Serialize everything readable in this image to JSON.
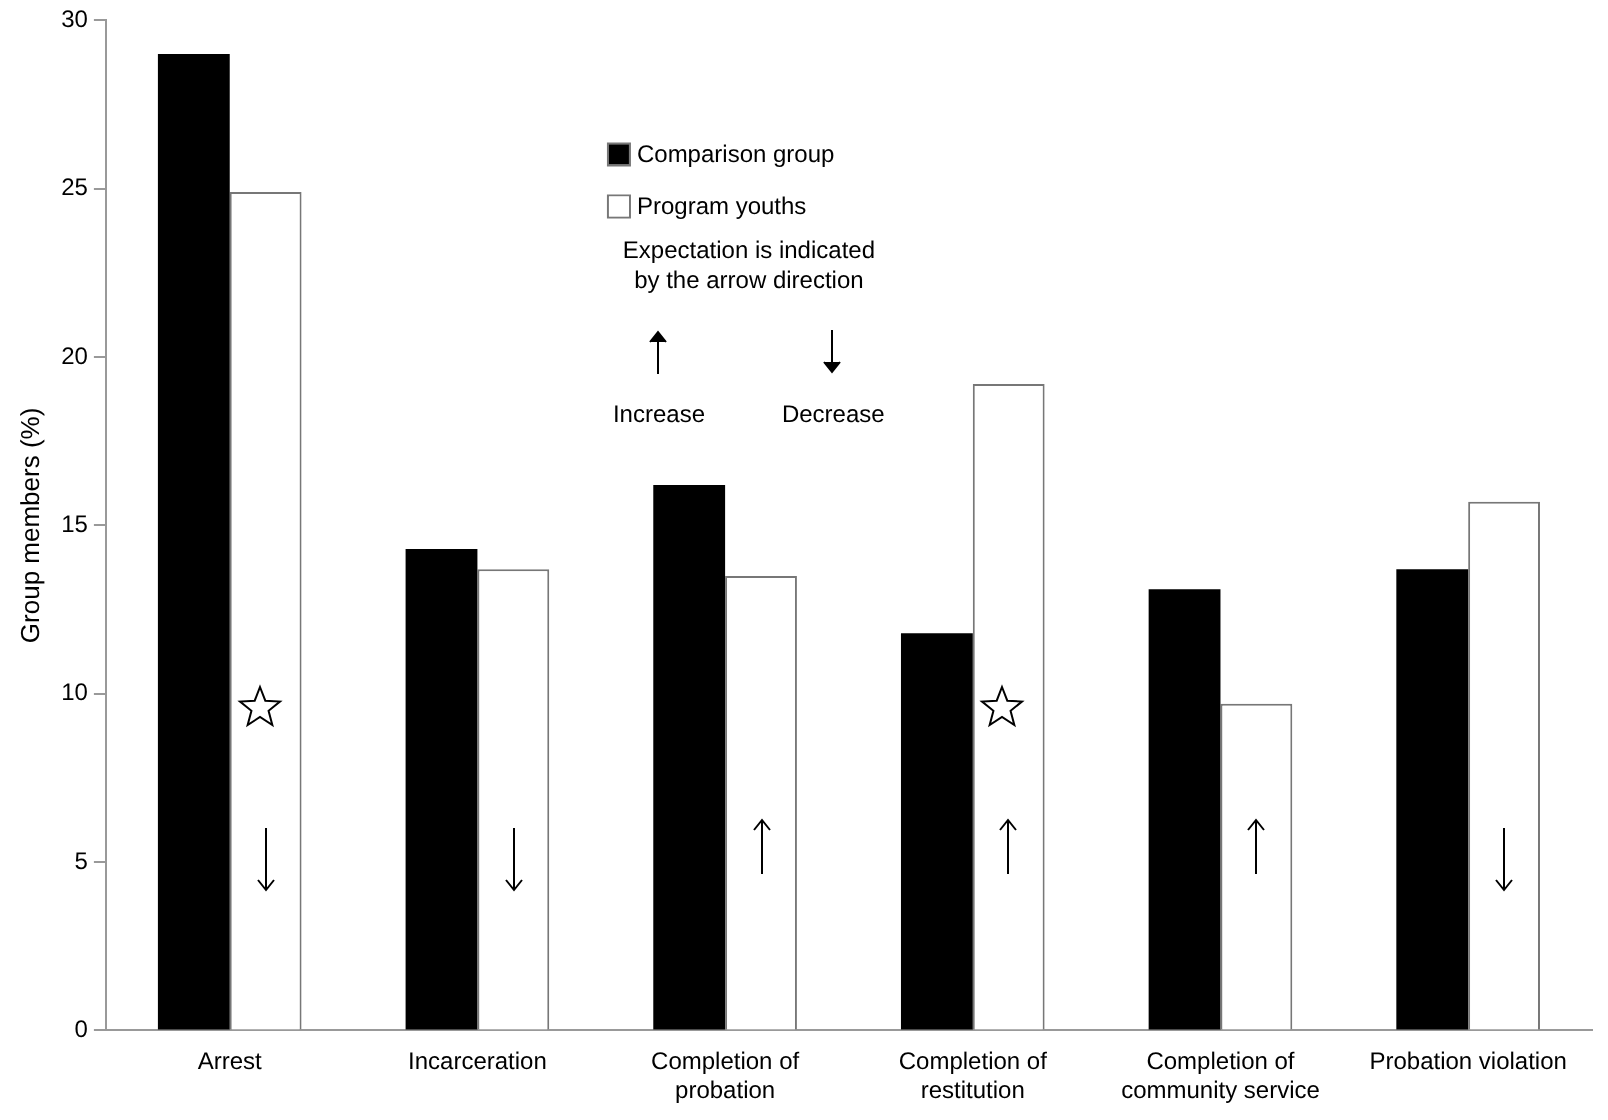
{
  "chart_data": {
    "type": "bar",
    "ylabel": "Group members (%)",
    "categories": [
      "Arrest",
      "Incarceration",
      "Completion of probation",
      "Completion of restitution",
      "Completion of community service",
      "Probation violation"
    ],
    "series": [
      {
        "name": "Comparison group",
        "color": "#000000",
        "values": [
          29.0,
          14.3,
          16.2,
          11.8,
          13.1,
          13.7
        ]
      },
      {
        "name": "Program youths",
        "color": "#ffffff",
        "values": [
          24.9,
          13.7,
          13.5,
          19.2,
          9.7,
          15.7
        ]
      }
    ],
    "ylim": [
      0,
      30
    ],
    "yticks": [
      0,
      5,
      10,
      15,
      20,
      25,
      30
    ],
    "grid": false,
    "legend": "top",
    "annotations": [
      "Expectation is indicated by the arrow direction",
      "Increase",
      "Decrease"
    ]
  }
}
